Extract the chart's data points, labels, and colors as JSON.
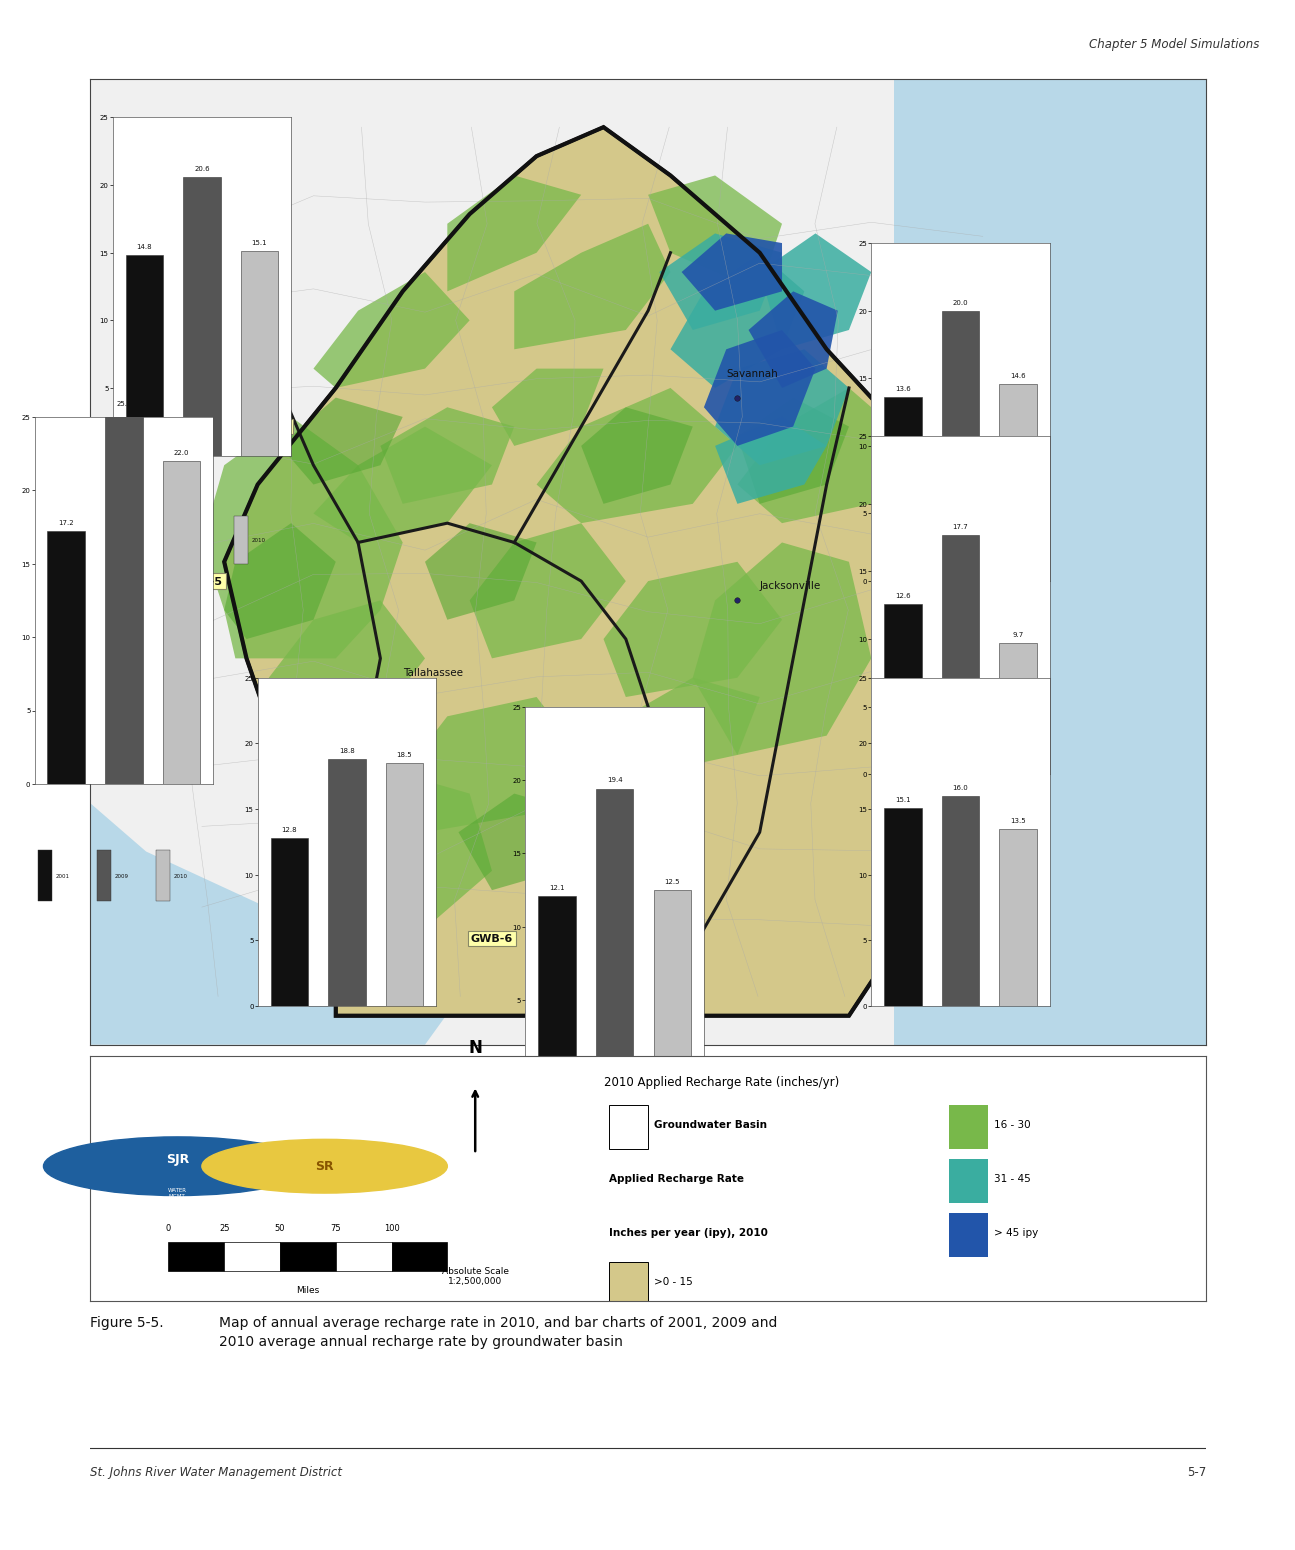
{
  "page_header": "Chapter 5 Model Simulations",
  "figure_caption_bold": "Figure 5-5.",
  "figure_caption_rest": "    Map of annual average recharge rate in 2010, and bar charts of 2001, 2009 and\n2010 average annual recharge rate by groundwater basin",
  "footer_left": "St. Johns River Water Management District",
  "footer_right": "5-7",
  "legend_title": "2010 Applied Recharge Rate (inches/yr)",
  "scale_bar_label": "Absolute Scale\n1:2,500,000",
  "scale_miles": [
    0,
    25,
    50,
    75,
    100
  ],
  "scale_label": "Miles",
  "bar_charts": {
    "GWB-1": {
      "values": [
        13.6,
        20.0,
        14.6
      ]
    },
    "GWB-2": {
      "values": [
        14.8,
        20.6,
        15.1
      ]
    },
    "GWB-3": {
      "values": [
        12.8,
        18.8,
        18.5
      ]
    },
    "GWB-4": {
      "values": [
        12.6,
        17.7,
        9.7
      ]
    },
    "GWB-5": {
      "values": [
        17.2,
        25.3,
        22.0
      ]
    },
    "GWB-6": {
      "values": [
        12.1,
        19.4,
        12.5
      ]
    },
    "GWB-7": {
      "values": [
        15.1,
        16.0,
        13.5
      ]
    }
  },
  "bar_colors": [
    "#111111",
    "#555555",
    "#c0c0c0"
  ],
  "bar_years": [
    "2001",
    "2009",
    "2010"
  ],
  "map_outside_color": "#e8e8e8",
  "map_water_color": "#b8d8e8",
  "map_tan_color": "#d4c88a",
  "map_green_color": "#78b84a",
  "map_green2_color": "#56a832",
  "map_teal_color": "#3aada0",
  "map_blue_color": "#2255aa",
  "figure_bg": "#ffffff"
}
